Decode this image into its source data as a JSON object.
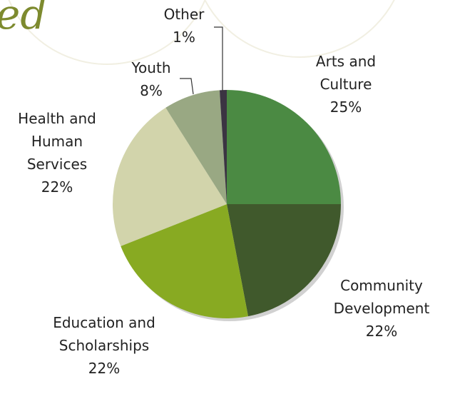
{
  "decoration_text": "ed",
  "chart_data": {
    "type": "pie",
    "categories": [
      "Arts and Culture",
      "Community Development",
      "Education and Scholarships",
      "Health and Human Services",
      "Youth",
      "Other"
    ],
    "values": [
      25,
      22,
      22,
      22,
      8,
      1
    ],
    "value_labels": [
      "25%",
      "22%",
      "22%",
      "22%",
      "8%",
      "1%"
    ],
    "colors": [
      "#4b8a43",
      "#40592c",
      "#88aa22",
      "#d2d4ab",
      "#99a883",
      "#3b3442"
    ]
  }
}
